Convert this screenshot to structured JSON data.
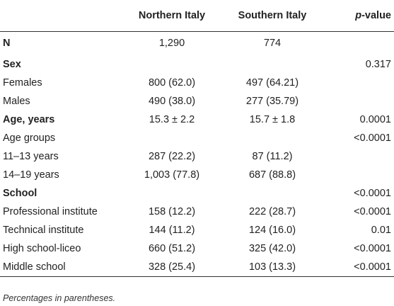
{
  "table": {
    "headers": {
      "label": "",
      "north": "Northern Italy",
      "south": "Southern Italy",
      "p_prefix": "p",
      "p_suffix": "-value"
    },
    "rows": [
      {
        "label": "N",
        "north": "1,290",
        "south": "774",
        "p": "",
        "bold": true
      },
      {
        "label": "Sex",
        "north": "",
        "south": "",
        "p": "0.317",
        "bold": true
      },
      {
        "label": "Females",
        "north": "800 (62.0)",
        "south": "497 (64.21)",
        "p": "",
        "bold": false
      },
      {
        "label": "Males",
        "north": "490 (38.0)",
        "south": "277 (35.79)",
        "p": "",
        "bold": false
      },
      {
        "label": "Age, years",
        "north": "15.3 ± 2.2",
        "south": "15.7 ± 1.8",
        "p": "0.0001",
        "bold": true
      },
      {
        "label": "Age groups",
        "north": "",
        "south": "",
        "p": "<0.0001",
        "bold": false
      },
      {
        "label": "11–13 years",
        "north": "287 (22.2)",
        "south": "87 (11.2)",
        "p": "",
        "bold": false
      },
      {
        "label": "14–19 years",
        "north": "1,003 (77.8)",
        "south": "687 (88.8)",
        "p": "",
        "bold": false
      },
      {
        "label": "School",
        "north": "",
        "south": "",
        "p": "<0.0001",
        "bold": true
      },
      {
        "label": "Professional institute",
        "north": "158 (12.2)",
        "south": "222 (28.7)",
        "p": "<0.0001",
        "bold": false
      },
      {
        "label": "Technical institute",
        "north": "144 (11.2)",
        "south": "124 (16.0)",
        "p": "0.01",
        "bold": false
      },
      {
        "label": "High school-liceo",
        "north": "660 (51.2)",
        "south": "325 (42.0)",
        "p": "<0.0001",
        "bold": false
      },
      {
        "label": "Middle school",
        "north": "328 (25.4)",
        "south": "103 (13.3)",
        "p": "<0.0001",
        "bold": false
      }
    ]
  },
  "footnote": "Percentages in parentheses."
}
